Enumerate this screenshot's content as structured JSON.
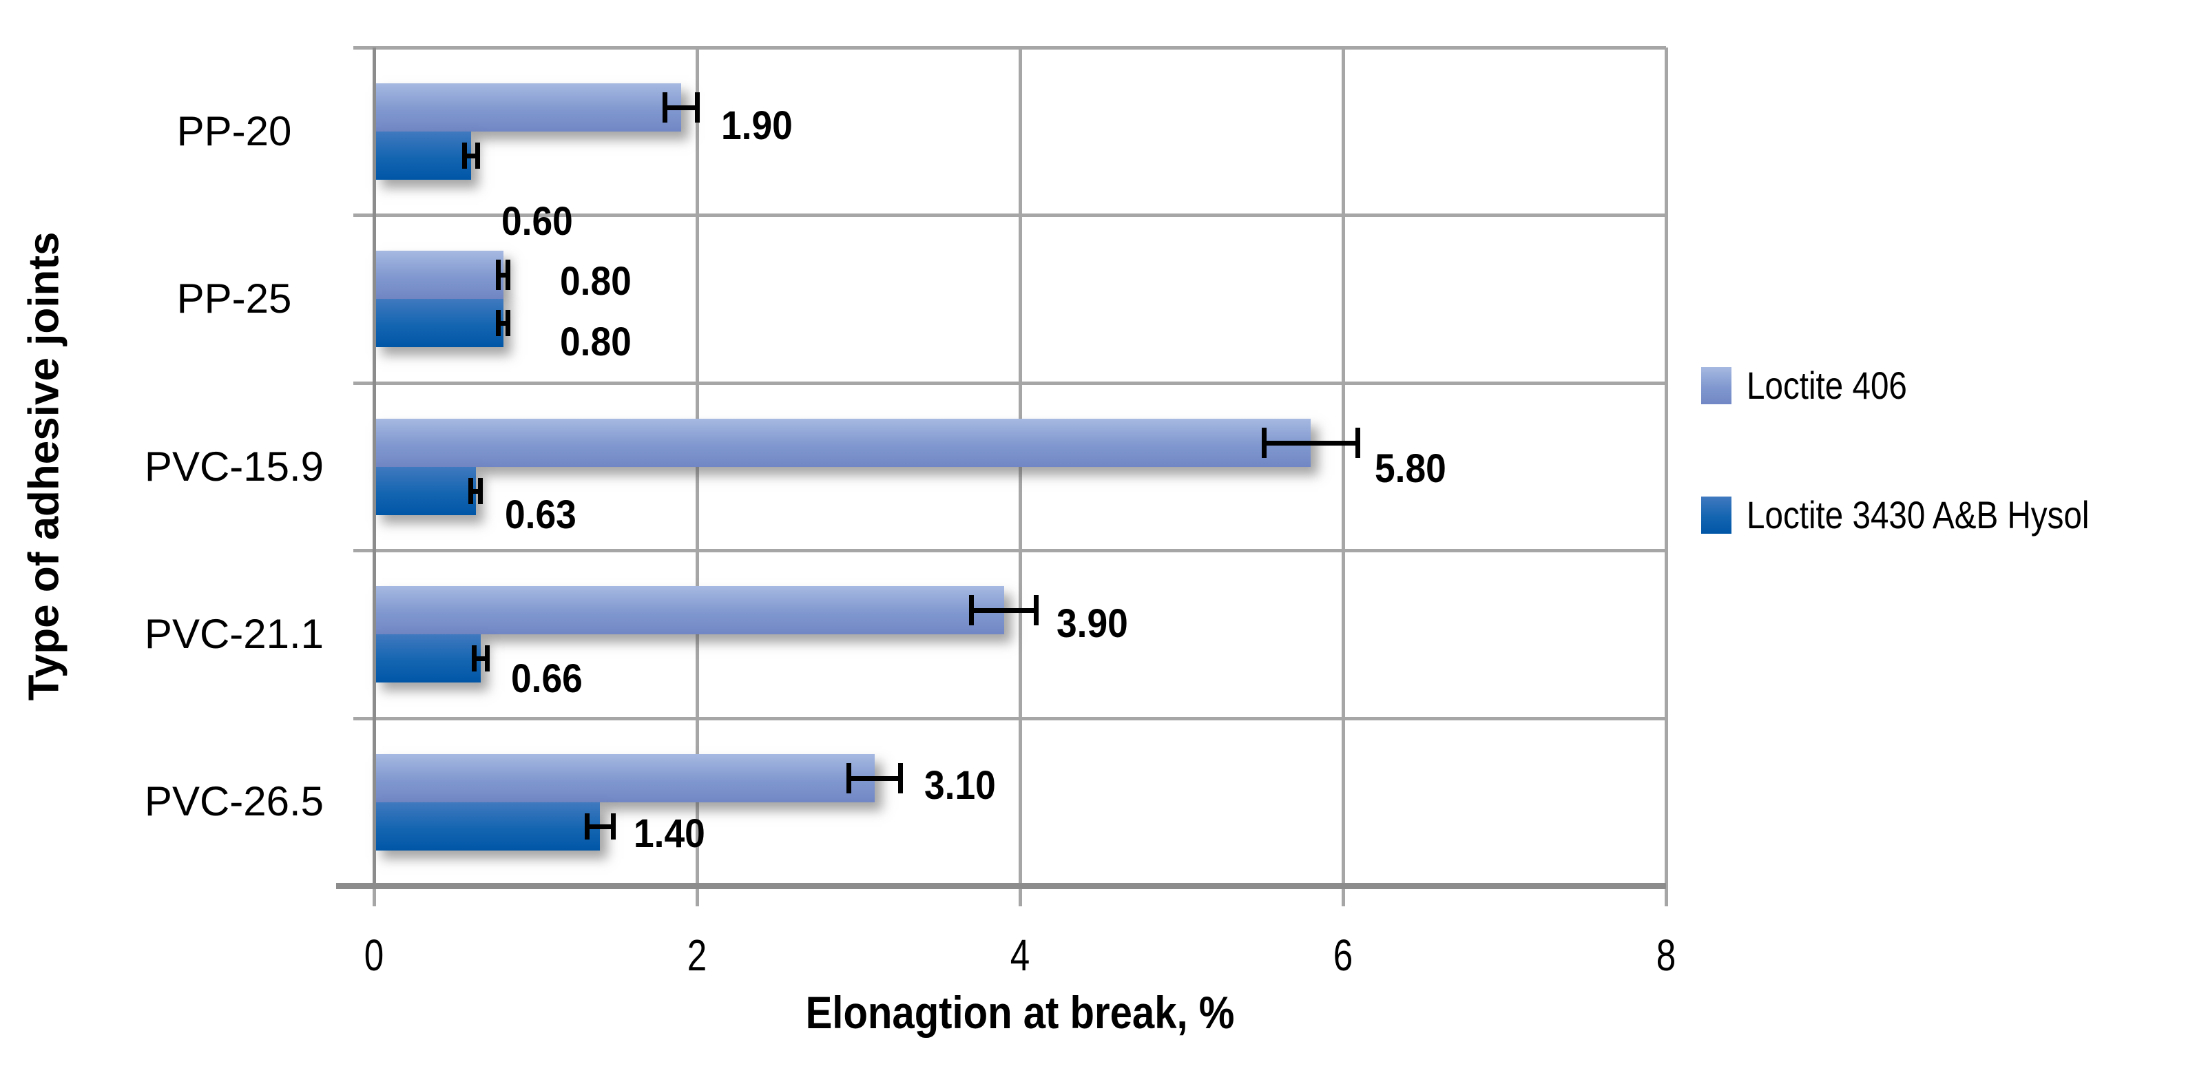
{
  "palette": {
    "background": "#FFFFFF",
    "grid": "#A6A6A6",
    "axis": "#8C8C8C",
    "error_bar": "#000000",
    "text": "#000000"
  },
  "legend": {
    "items": [
      "Loctite 406",
      "Loctite 3430 A&B Hysol"
    ]
  },
  "chart_data": {
    "type": "bar",
    "orientation": "horizontal",
    "title": "",
    "xlabel": "Elonagtion at break, %",
    "ylabel": "Type of adhesive joints",
    "xlim": [
      0,
      8
    ],
    "xticks": [
      0,
      2,
      4,
      6,
      8
    ],
    "grid": true,
    "legend_position": "right",
    "categories": [
      "PP-20",
      "PP-25",
      "PVC-15.9",
      "PVC-21.1",
      "PVC-26.5"
    ],
    "series": [
      {
        "name": "Loctite 406",
        "values": [
          1.9,
          0.8,
          5.8,
          3.9,
          3.1
        ],
        "errors": [
          0.1,
          0.03,
          0.29,
          0.2,
          0.16
        ],
        "labels": [
          "1.90",
          "0.80",
          "5.80",
          "3.90",
          "3.10"
        ],
        "gradient": [
          "#A6B9E1",
          "#8098CF",
          "#7187C5"
        ]
      },
      {
        "name": "Loctite 3430 A&B Hysol",
        "values": [
          0.6,
          0.8,
          0.63,
          0.66,
          1.4
        ],
        "errors": [
          0.04,
          0.03,
          0.03,
          0.04,
          0.08
        ],
        "labels": [
          "0.60",
          "0.80",
          "0.63",
          "0.66",
          "1.40"
        ],
        "gradient": [
          "#4079BF",
          "#1465B1",
          "#0056A6"
        ]
      }
    ],
    "label_offsets_y": [
      [
        27,
        10,
        38,
        20,
        11
      ],
      [
        96,
        28,
        35,
        30,
        11
      ]
    ],
    "label_offsets_x": [
      [
        35,
        75,
        25,
        30,
        35
      ],
      [
        35,
        75,
        35,
        35,
        30
      ]
    ]
  }
}
